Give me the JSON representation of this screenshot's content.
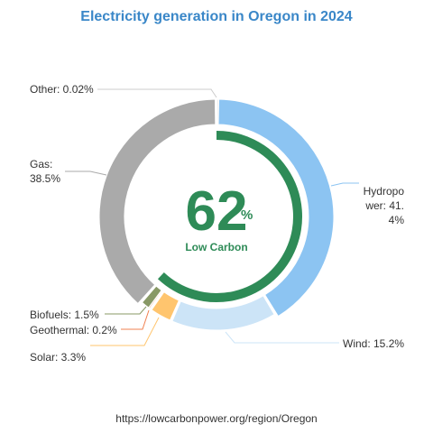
{
  "title": "Electricity generation in Oregon in 2024",
  "center": {
    "value": "62",
    "unit": "%",
    "label": "Low Carbon"
  },
  "source": "https://lowcarbonpower.org/region/Oregon",
  "chart_data": {
    "type": "pie",
    "title": "Electricity generation in Oregon in 2024",
    "slices": [
      {
        "name": "Hydropower",
        "value": 41.4,
        "label": "Hydropower: 41.4%",
        "color": "#8cc4f2"
      },
      {
        "name": "Wind",
        "value": 15.2,
        "label": "Wind: 15.2%",
        "color": "#cce4f7"
      },
      {
        "name": "Solar",
        "value": 3.3,
        "label": "Solar: 3.3%",
        "color": "#ffc56e"
      },
      {
        "name": "Geothermal",
        "value": 0.2,
        "label": "Geothermal: 0.2%",
        "color": "#f08050"
      },
      {
        "name": "Biofuels",
        "value": 1.5,
        "label": "Biofuels: 1.5%",
        "color": "#889966"
      },
      {
        "name": "Gas",
        "value": 38.5,
        "label": "Gas: 38.5%",
        "color": "#aaaaaa"
      },
      {
        "name": "Other",
        "value": 0.02,
        "label": "Other: 0.02%",
        "color": "#cccccc"
      }
    ],
    "low_carbon_share": 62,
    "low_carbon_color": "#2e8b57"
  }
}
